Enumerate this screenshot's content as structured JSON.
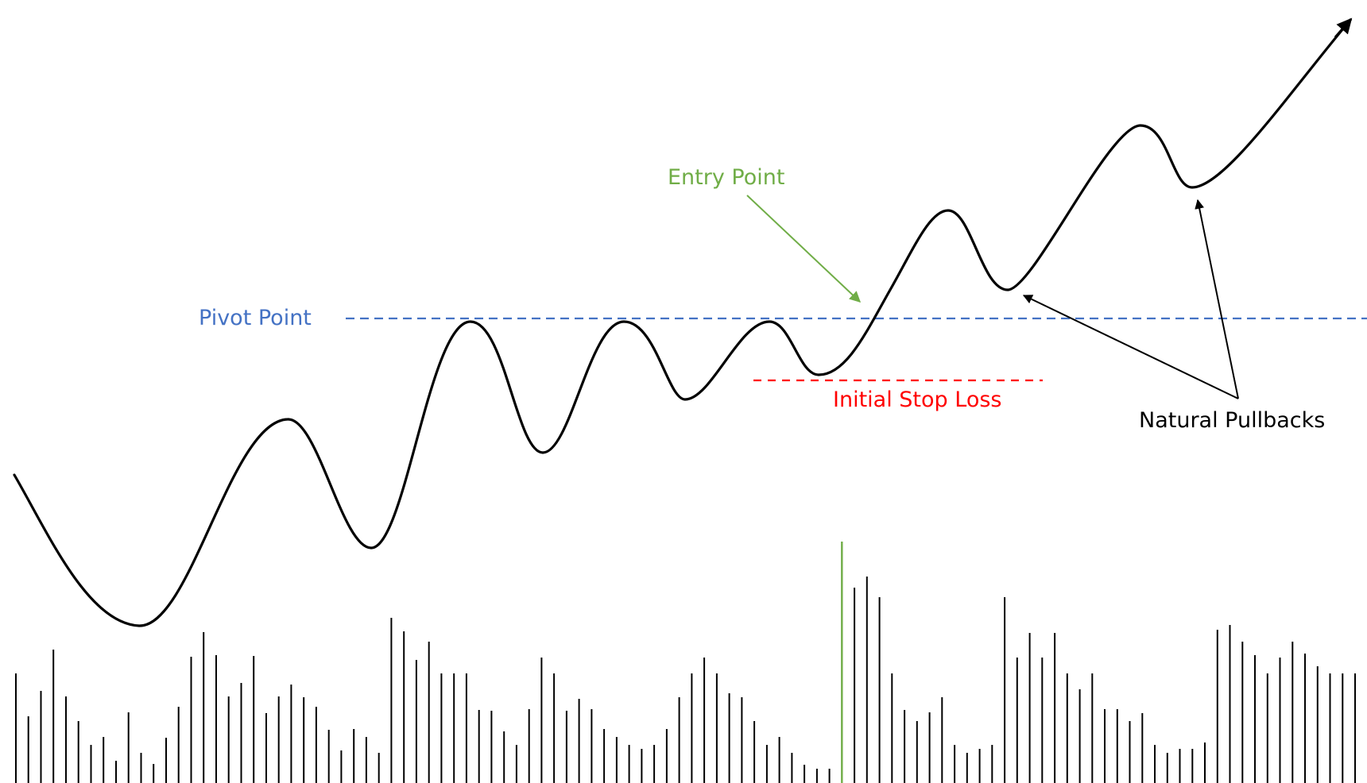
{
  "labels": {
    "pivot": "Pivot Point",
    "entry": "Entry Point",
    "stop": "Initial Stop Loss",
    "pullbacks": "Natural Pullbacks"
  },
  "colors": {
    "pivot": "#4472C4",
    "entry": "#70AD47",
    "stop": "#FF0000",
    "price": "#000000",
    "volume": "#000000",
    "breakout_volume": "#70AD47"
  }
}
